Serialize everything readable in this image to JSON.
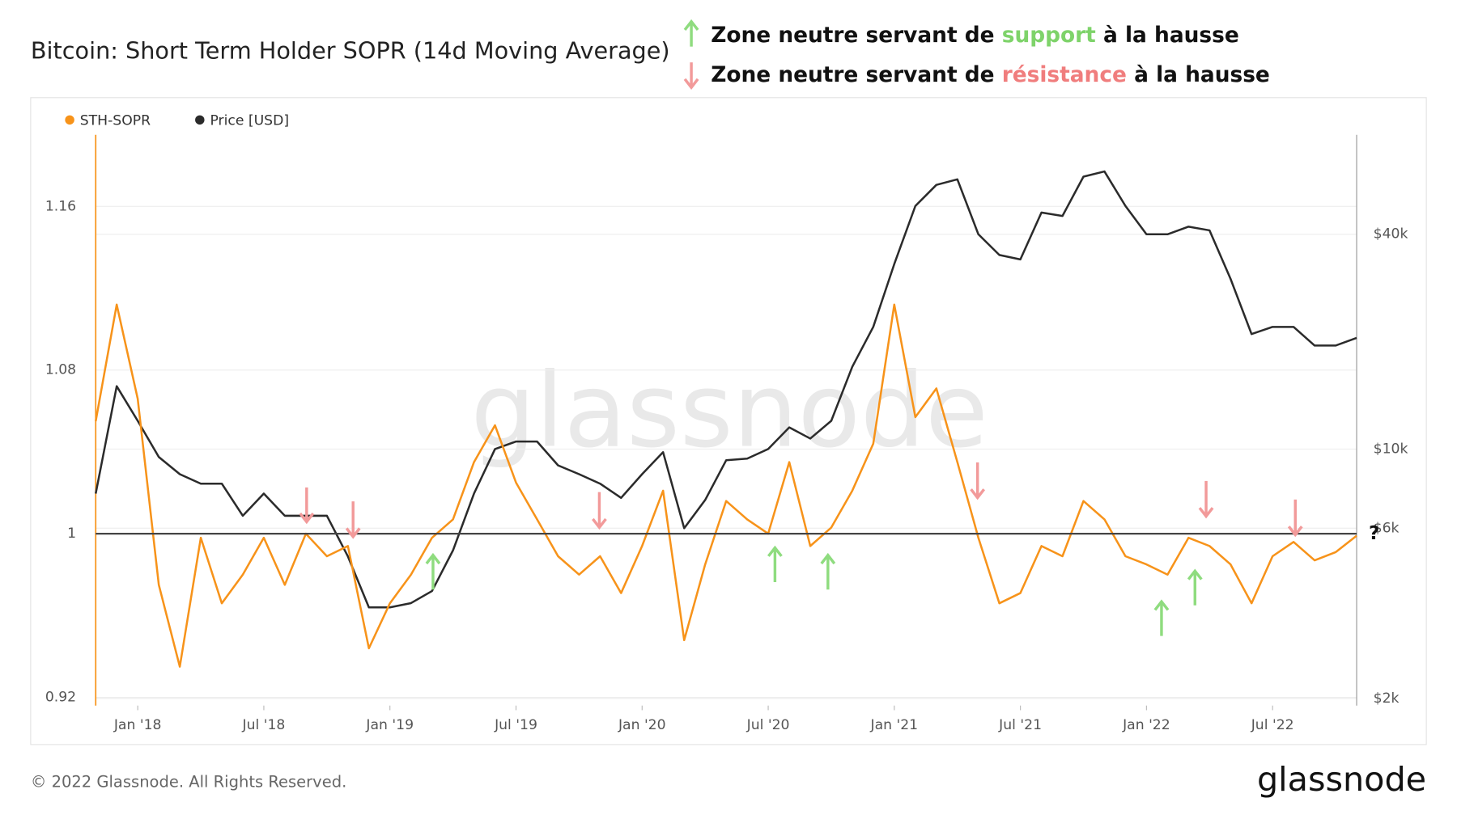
{
  "chart_data": {
    "type": "line",
    "title": "Bitcoin: Short Term Holder SOPR (14d Moving Average)",
    "annotations": {
      "support": [
        "Zone neutre servant de",
        "support",
        "à la hausse"
      ],
      "resistance": [
        "Zone neutre servant de",
        "résistance",
        "à la hausse"
      ],
      "question": "?"
    },
    "watermark": "glassnode",
    "footer": "© 2022 Glassnode. All Rights Reserved.",
    "logo": "glassnode",
    "x": [
      "2017-11",
      "2017-12",
      "2018-01",
      "2018-02",
      "2018-03",
      "2018-04",
      "2018-05",
      "2018-06",
      "2018-07",
      "2018-08",
      "2018-09",
      "2018-10",
      "2018-11",
      "2018-12",
      "2019-01",
      "2019-02",
      "2019-03",
      "2019-04",
      "2019-05",
      "2019-06",
      "2019-07",
      "2019-08",
      "2019-09",
      "2019-10",
      "2019-11",
      "2019-12",
      "2020-01",
      "2020-02",
      "2020-03",
      "2020-04",
      "2020-05",
      "2020-06",
      "2020-07",
      "2020-08",
      "2020-09",
      "2020-10",
      "2020-11",
      "2020-12",
      "2021-01",
      "2021-02",
      "2021-03",
      "2021-04",
      "2021-05",
      "2021-06",
      "2021-07",
      "2021-08",
      "2021-09",
      "2021-10",
      "2021-11",
      "2021-12",
      "2022-01",
      "2022-02",
      "2022-03",
      "2022-04",
      "2022-05",
      "2022-06",
      "2022-07",
      "2022-08",
      "2022-09",
      "2022-10",
      "2022-11"
    ],
    "series": [
      {
        "name": "STH-SOPR",
        "color": "#f7931a",
        "axis": "y",
        "values": [
          1.055,
          1.112,
          1.066,
          0.975,
          0.935,
          0.998,
          0.966,
          0.98,
          0.998,
          0.975,
          1.0,
          0.989,
          0.994,
          0.944,
          0.966,
          0.98,
          0.998,
          1.007,
          1.035,
          1.053,
          1.025,
          1.007,
          0.989,
          0.98,
          0.989,
          0.971,
          0.994,
          1.021,
          0.948,
          0.985,
          1.016,
          1.007,
          1.0,
          1.035,
          0.994,
          1.003,
          1.021,
          1.044,
          1.112,
          1.057,
          1.071,
          1.035,
          0.998,
          0.966,
          0.971,
          0.994,
          0.989,
          1.016,
          1.007,
          0.989,
          0.985,
          0.98,
          0.998,
          0.994,
          0.985,
          0.966,
          0.989,
          0.996,
          0.987,
          0.991,
          0.999
        ]
      },
      {
        "name": "Price [USD]",
        "color": "#2b2b2b",
        "axis": "y2",
        "values": [
          7500,
          15000,
          12000,
          9500,
          8500,
          8000,
          8000,
          6500,
          7500,
          6500,
          6500,
          6500,
          5000,
          3600,
          3600,
          3700,
          4000,
          5200,
          7500,
          10000,
          10500,
          10500,
          9000,
          8500,
          8000,
          7300,
          8500,
          9800,
          6000,
          7200,
          9300,
          9400,
          10000,
          11500,
          10700,
          12000,
          17000,
          22000,
          33000,
          48000,
          55000,
          57000,
          40000,
          35000,
          34000,
          46000,
          45000,
          58000,
          60000,
          48000,
          40000,
          40000,
          42000,
          41000,
          30000,
          21000,
          22000,
          22000,
          19500,
          19500,
          20500
        ]
      }
    ],
    "xlim": [
      "2017-11",
      "2022-11"
    ],
    "xticks": [
      {
        "value": "2018-01",
        "label": "Jan '18"
      },
      {
        "value": "2018-07",
        "label": "Jul '18"
      },
      {
        "value": "2019-01",
        "label": "Jan '19"
      },
      {
        "value": "2019-07",
        "label": "Jul '19"
      },
      {
        "value": "2020-01",
        "label": "Jan '20"
      },
      {
        "value": "2020-07",
        "label": "Jul '20"
      },
      {
        "value": "2021-01",
        "label": "Jan '21"
      },
      {
        "value": "2021-07",
        "label": "Jul '21"
      },
      {
        "value": "2022-01",
        "label": "Jan '22"
      },
      {
        "value": "2022-07",
        "label": "Jul '22"
      }
    ],
    "ylim": [
      0.916,
      1.195
    ],
    "yticks": [
      0.92,
      1,
      1.08,
      1.16
    ],
    "y2lim": [
      1910,
      76000
    ],
    "y2ticks": [
      {
        "value": 2000,
        "label": "$2k"
      },
      {
        "value": 6000,
        "label": "$6k"
      },
      {
        "value": 10000,
        "label": "$10k"
      },
      {
        "value": 40000,
        "label": "$40k"
      }
    ],
    "y2log": true,
    "hline": 1,
    "grid": true,
    "legend": "top-left"
  }
}
